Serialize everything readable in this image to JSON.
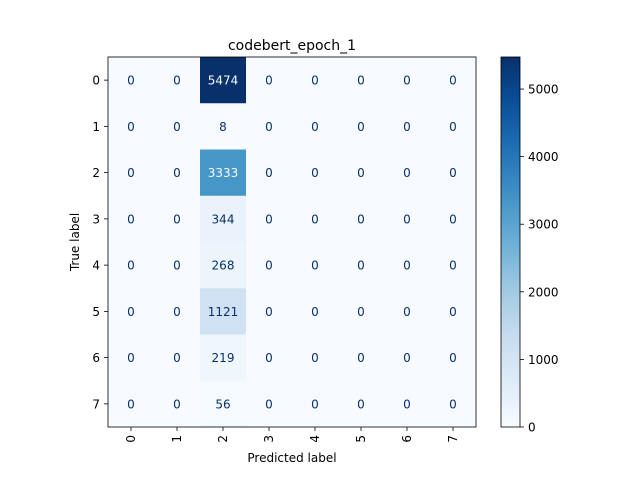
{
  "chart_data": {
    "type": "heatmap",
    "title": "codebert_epoch_1",
    "xlabel": "Predicted label",
    "ylabel": "True label",
    "x_categories": [
      "0",
      "1",
      "2",
      "3",
      "4",
      "5",
      "6",
      "7"
    ],
    "y_categories": [
      "0",
      "1",
      "2",
      "3",
      "4",
      "5",
      "6",
      "7"
    ],
    "values": [
      [
        0,
        0,
        5474,
        0,
        0,
        0,
        0,
        0
      ],
      [
        0,
        0,
        8,
        0,
        0,
        0,
        0,
        0
      ],
      [
        0,
        0,
        3333,
        0,
        0,
        0,
        0,
        0
      ],
      [
        0,
        0,
        344,
        0,
        0,
        0,
        0,
        0
      ],
      [
        0,
        0,
        268,
        0,
        0,
        0,
        0,
        0
      ],
      [
        0,
        0,
        1121,
        0,
        0,
        0,
        0,
        0
      ],
      [
        0,
        0,
        219,
        0,
        0,
        0,
        0,
        0
      ],
      [
        0,
        0,
        56,
        0,
        0,
        0,
        0,
        0
      ]
    ],
    "colorbar": {
      "min": 0,
      "max": 5474,
      "ticks": [
        "0",
        "1000",
        "2000",
        "3000",
        "4000",
        "5000"
      ],
      "colormap": "Blues"
    },
    "x_tick_rotation": "vertical",
    "grid": false
  }
}
